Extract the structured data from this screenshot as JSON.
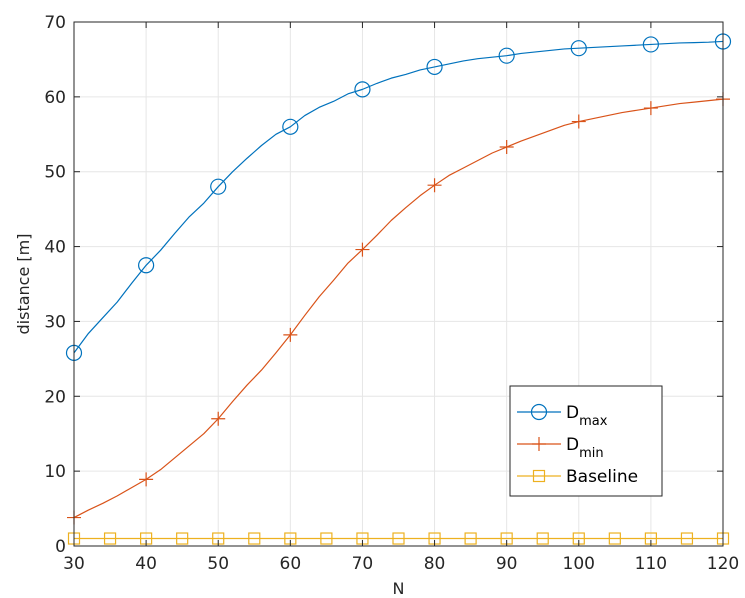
{
  "chart_data": {
    "type": "line",
    "xlabel": "N",
    "ylabel": "distance [m]",
    "xlim": [
      30,
      120
    ],
    "ylim": [
      0,
      70
    ],
    "x_ticks": [
      "30",
      "40",
      "50",
      "60",
      "70",
      "80",
      "90",
      "100",
      "110",
      "120"
    ],
    "y_ticks": [
      "0",
      "10",
      "20",
      "30",
      "40",
      "50",
      "60",
      "70"
    ],
    "grid": true,
    "legend_position": "bottom-right",
    "series": [
      {
        "name": "D",
        "name_sub": "max",
        "color": "#0072BD",
        "marker": "circle",
        "x": [
          30,
          32,
          34,
          36,
          38,
          40,
          42,
          44,
          46,
          48,
          50,
          52,
          54,
          56,
          58,
          60,
          62,
          64,
          66,
          68,
          70,
          72,
          74,
          76,
          78,
          80,
          82,
          84,
          86,
          88,
          90,
          92,
          94,
          96,
          98,
          100,
          102,
          104,
          106,
          108,
          110,
          112,
          114,
          116,
          118,
          120
        ],
        "values": [
          25.8,
          28.4,
          30.5,
          32.6,
          35.1,
          37.5,
          39.5,
          41.8,
          44.0,
          45.8,
          48.0,
          50.0,
          51.8,
          53.5,
          55.0,
          56.0,
          57.5,
          58.6,
          59.4,
          60.4,
          61.0,
          61.8,
          62.5,
          63.0,
          63.6,
          64.0,
          64.4,
          64.8,
          65.1,
          65.3,
          65.5,
          65.8,
          66.0,
          66.2,
          66.4,
          66.5,
          66.6,
          66.7,
          66.8,
          66.9,
          67.0,
          67.1,
          67.2,
          67.25,
          67.3,
          67.4
        ],
        "marker_x": [
          30,
          40,
          50,
          60,
          70,
          80,
          90,
          100,
          110,
          120
        ],
        "marker_values": [
          25.8,
          37.5,
          48.0,
          56.0,
          61.0,
          64.0,
          65.5,
          66.5,
          67.0,
          67.4
        ]
      },
      {
        "name": "D",
        "name_sub": "min",
        "color": "#D95319",
        "marker": "plus",
        "x": [
          30,
          32,
          34,
          36,
          38,
          40,
          42,
          44,
          46,
          48,
          50,
          52,
          54,
          56,
          58,
          60,
          62,
          64,
          66,
          68,
          70,
          72,
          74,
          76,
          78,
          80,
          82,
          84,
          86,
          88,
          90,
          92,
          94,
          96,
          98,
          100,
          102,
          104,
          106,
          108,
          110,
          112,
          114,
          116,
          118,
          120
        ],
        "values": [
          3.8,
          4.8,
          5.7,
          6.7,
          7.8,
          8.9,
          10.2,
          11.8,
          13.4,
          15.0,
          17.0,
          19.3,
          21.5,
          23.5,
          25.8,
          28.2,
          30.8,
          33.3,
          35.5,
          37.8,
          39.6,
          41.5,
          43.5,
          45.2,
          46.8,
          48.2,
          49.5,
          50.5,
          51.5,
          52.5,
          53.3,
          54.1,
          54.8,
          55.5,
          56.2,
          56.7,
          57.1,
          57.5,
          57.9,
          58.2,
          58.5,
          58.8,
          59.1,
          59.3,
          59.5,
          59.7
        ],
        "marker_x": [
          30,
          40,
          50,
          60,
          70,
          80,
          90,
          100,
          110,
          120
        ],
        "marker_values": [
          3.8,
          8.9,
          17.0,
          28.2,
          39.6,
          48.2,
          53.3,
          56.7,
          58.5,
          59.7
        ]
      },
      {
        "name": "Baseline",
        "name_sub": "",
        "color": "#EDB120",
        "marker": "square",
        "x": [
          30,
          120
        ],
        "values": [
          1.0,
          1.0
        ],
        "marker_x": [
          30,
          35,
          40,
          45,
          50,
          55,
          60,
          65,
          70,
          75,
          80,
          85,
          90,
          95,
          100,
          105,
          110,
          115,
          120
        ],
        "marker_values": [
          1.0,
          1.0,
          1.0,
          1.0,
          1.0,
          1.0,
          1.0,
          1.0,
          1.0,
          1.0,
          1.0,
          1.0,
          1.0,
          1.0,
          1.0,
          1.0,
          1.0,
          1.0,
          1.0
        ]
      }
    ]
  }
}
